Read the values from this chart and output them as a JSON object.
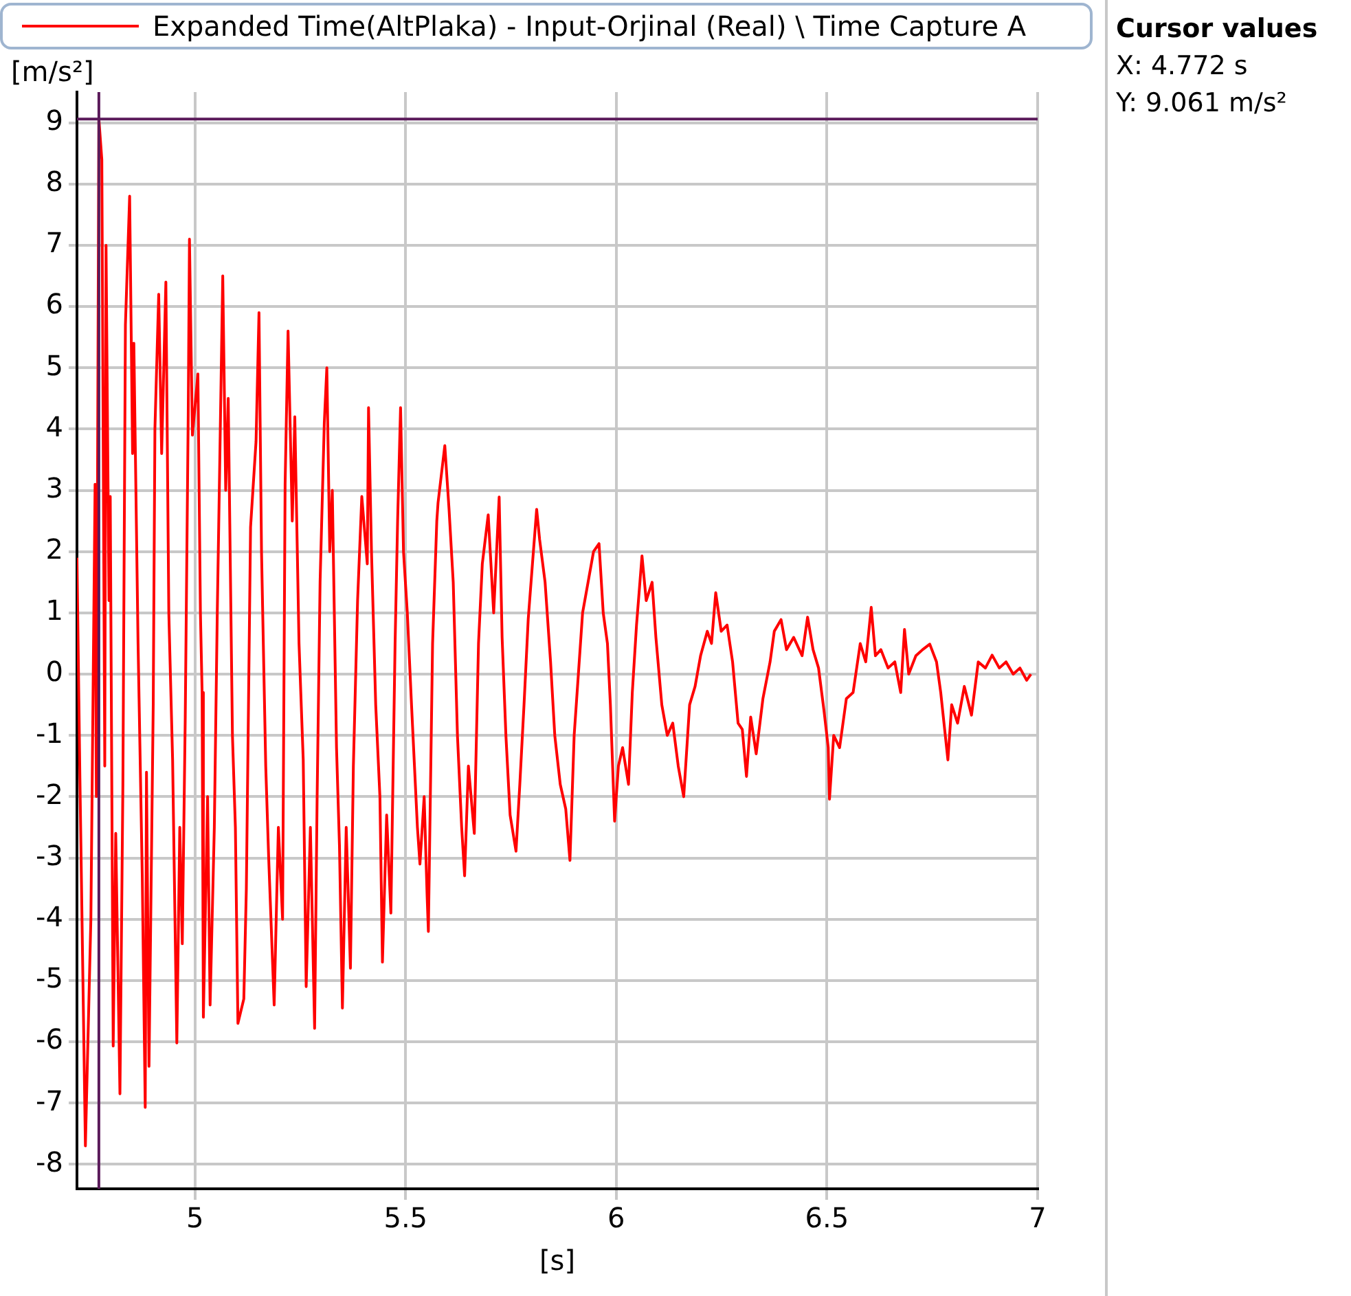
{
  "chart_data": {
    "type": "line",
    "xlabel": "[s]",
    "ylabel": "[m/s²]",
    "xlim": [
      4.72,
      7
    ],
    "ylim": [
      -8.4,
      9.5
    ],
    "xticks": [
      5,
      5.5,
      6,
      6.5,
      7
    ],
    "yticks": [
      -8,
      -7,
      -6,
      -5,
      -4,
      -3,
      -2,
      -1,
      0,
      1,
      2,
      3,
      4,
      5,
      6,
      7,
      8,
      9
    ],
    "grid": true,
    "legend": "top",
    "marker": "none",
    "line_style": "solid",
    "series": [
      {
        "name": "Expanded Time(AltPlaka) - Input-Orjinal (Real) \\ Time Capture A",
        "color": "#ff0000",
        "x": [
          4.72,
          4.727,
          4.74,
          4.753,
          4.763,
          4.766,
          4.772,
          4.779,
          4.786,
          4.789,
          4.796,
          4.799,
          4.806,
          4.812,
          4.822,
          4.829,
          4.835,
          4.845,
          4.852,
          4.855,
          4.865,
          4.875,
          4.882,
          4.885,
          4.891,
          4.901,
          4.905,
          4.914,
          4.921,
          4.931,
          4.938,
          4.947,
          4.957,
          4.964,
          4.97,
          4.977,
          4.984,
          4.987,
          4.994,
          5.007,
          5.013,
          5.017,
          5.02,
          5.03,
          5.036,
          5.046,
          5.053,
          5.059,
          5.066,
          5.073,
          5.079,
          5.089,
          5.096,
          5.102,
          5.116,
          5.122,
          5.132,
          5.145,
          5.152,
          5.158,
          5.168,
          5.175,
          5.188,
          5.198,
          5.208,
          5.214,
          5.221,
          5.231,
          5.237,
          5.247,
          5.257,
          5.264,
          5.274,
          5.284,
          5.29,
          5.297,
          5.307,
          5.313,
          5.32,
          5.326,
          5.336,
          5.343,
          5.35,
          5.359,
          5.369,
          5.376,
          5.386,
          5.396,
          5.409,
          5.412,
          5.419,
          5.429,
          5.439,
          5.445,
          5.455,
          5.465,
          5.475,
          5.481,
          5.488,
          5.495,
          5.504,
          5.514,
          5.528,
          5.534,
          5.544,
          5.551,
          5.554,
          5.564,
          5.574,
          5.577,
          5.593,
          5.603,
          5.613,
          5.623,
          5.633,
          5.64,
          5.649,
          5.663,
          5.673,
          5.682,
          5.696,
          5.709,
          5.722,
          5.729,
          5.738,
          5.748,
          5.762,
          5.771,
          5.781,
          5.791,
          5.801,
          5.811,
          5.818,
          5.831,
          5.844,
          5.854,
          5.867,
          5.88,
          5.89,
          5.9,
          5.91,
          5.92,
          5.933,
          5.946,
          5.959,
          5.969,
          5.979,
          5.986,
          5.996,
          6.005,
          6.015,
          6.029,
          6.038,
          6.048,
          6.061,
          6.071,
          6.085,
          6.094,
          6.108,
          6.121,
          6.134,
          6.147,
          6.16,
          6.174,
          6.187,
          6.2,
          6.216,
          6.226,
          6.236,
          6.249,
          6.263,
          6.276,
          6.289,
          6.299,
          6.309,
          6.319,
          6.332,
          6.348,
          6.365,
          6.375,
          6.391,
          6.404,
          6.421,
          6.441,
          6.454,
          6.467,
          6.48,
          6.493,
          6.503,
          6.506,
          6.516,
          6.53,
          6.546,
          6.562,
          6.579,
          6.592,
          6.605,
          6.615,
          6.628,
          6.645,
          6.661,
          6.675,
          6.684,
          6.694,
          6.711,
          6.727,
          6.744,
          6.76,
          6.77,
          6.787,
          6.796,
          6.81,
          6.826,
          6.843,
          6.859,
          6.876,
          6.892,
          6.909,
          6.925,
          6.942,
          6.958,
          6.974,
          6.984
        ],
        "values": [
          1.9,
          -1.7,
          -7.7,
          -4,
          3.1,
          -2,
          9.06,
          8.4,
          -1.5,
          7.0,
          1.2,
          2.9,
          -6.07,
          -2.6,
          -6.85,
          -1.8,
          5.7,
          7.8,
          3.6,
          5.4,
          0.5,
          -3.3,
          -7.07,
          -1.6,
          -6.4,
          -0.5,
          4.0,
          6.2,
          3.6,
          6.4,
          1.0,
          -1.4,
          -6.02,
          -2.5,
          -4.4,
          -0.7,
          4.2,
          7.1,
          3.9,
          4.9,
          1.0,
          -0.3,
          -5.6,
          -2.0,
          -5.4,
          -2.5,
          1.0,
          3.5,
          6.5,
          3.0,
          4.5,
          -1.0,
          -2.5,
          -5.7,
          -5.3,
          -3.5,
          2.4,
          3.8,
          5.9,
          2.0,
          -1.5,
          -3.0,
          -5.4,
          -2.5,
          -4.0,
          3.1,
          5.6,
          2.5,
          4.2,
          0.5,
          -1.4,
          -5.1,
          -2.5,
          -5.78,
          -2.0,
          1.5,
          4.1,
          5.0,
          2.0,
          3.0,
          -1.2,
          -2.8,
          -5.45,
          -2.5,
          -4.8,
          -1.5,
          1.2,
          2.9,
          1.8,
          4.35,
          2.0,
          -0.5,
          -2.0,
          -4.7,
          -2.3,
          -3.9,
          0.5,
          2.5,
          4.35,
          2.0,
          1.0,
          -0.5,
          -2.5,
          -3.1,
          -2.0,
          -3.62,
          -4.2,
          0.5,
          2.5,
          2.8,
          3.73,
          2.7,
          1.5,
          -1.0,
          -2.5,
          -3.29,
          -1.5,
          -2.6,
          0.5,
          1.8,
          2.6,
          1.0,
          2.89,
          0.6,
          -1.0,
          -2.3,
          -2.89,
          -1.8,
          -0.5,
          0.9,
          1.8,
          2.69,
          2.2,
          1.5,
          0.2,
          -1.0,
          -1.8,
          -2.2,
          -3.04,
          -1.0,
          0.0,
          1.0,
          1.5,
          2.0,
          2.13,
          1.0,
          0.5,
          -0.5,
          -2.4,
          -1.5,
          -1.2,
          -1.8,
          -0.3,
          0.8,
          1.93,
          1.2,
          1.5,
          0.6,
          -0.5,
          -1.0,
          -0.8,
          -1.5,
          -2.0,
          -0.5,
          -0.2,
          0.3,
          0.7,
          0.5,
          1.33,
          0.7,
          0.8,
          0.2,
          -0.8,
          -0.9,
          -1.67,
          -0.7,
          -1.3,
          -0.4,
          0.2,
          0.7,
          0.89,
          0.4,
          0.6,
          0.3,
          0.93,
          0.4,
          0.1,
          -0.6,
          -1.2,
          -2.04,
          -1.0,
          -1.2,
          -0.4,
          -0.3,
          0.5,
          0.2,
          1.09,
          0.3,
          0.4,
          0.1,
          0.2,
          -0.3,
          0.73,
          0.0,
          0.3,
          0.4,
          0.49,
          0.2,
          -0.3,
          -1.4,
          -0.5,
          -0.8,
          -0.2,
          -0.67,
          0.2,
          0.1,
          0.31,
          0.1,
          0.2,
          0.0,
          0.1,
          -0.1,
          0.0
        ]
      }
    ],
    "ref_lines": [
      {
        "axis": "x",
        "value": 4.772,
        "color": "#5a1a5a"
      },
      {
        "axis": "y",
        "value": 9.061,
        "color": "#5a1a5a"
      }
    ],
    "annotations": [
      "Cursor values",
      "X: 4.772 s",
      "Y: 9.061 m/s²"
    ]
  }
}
